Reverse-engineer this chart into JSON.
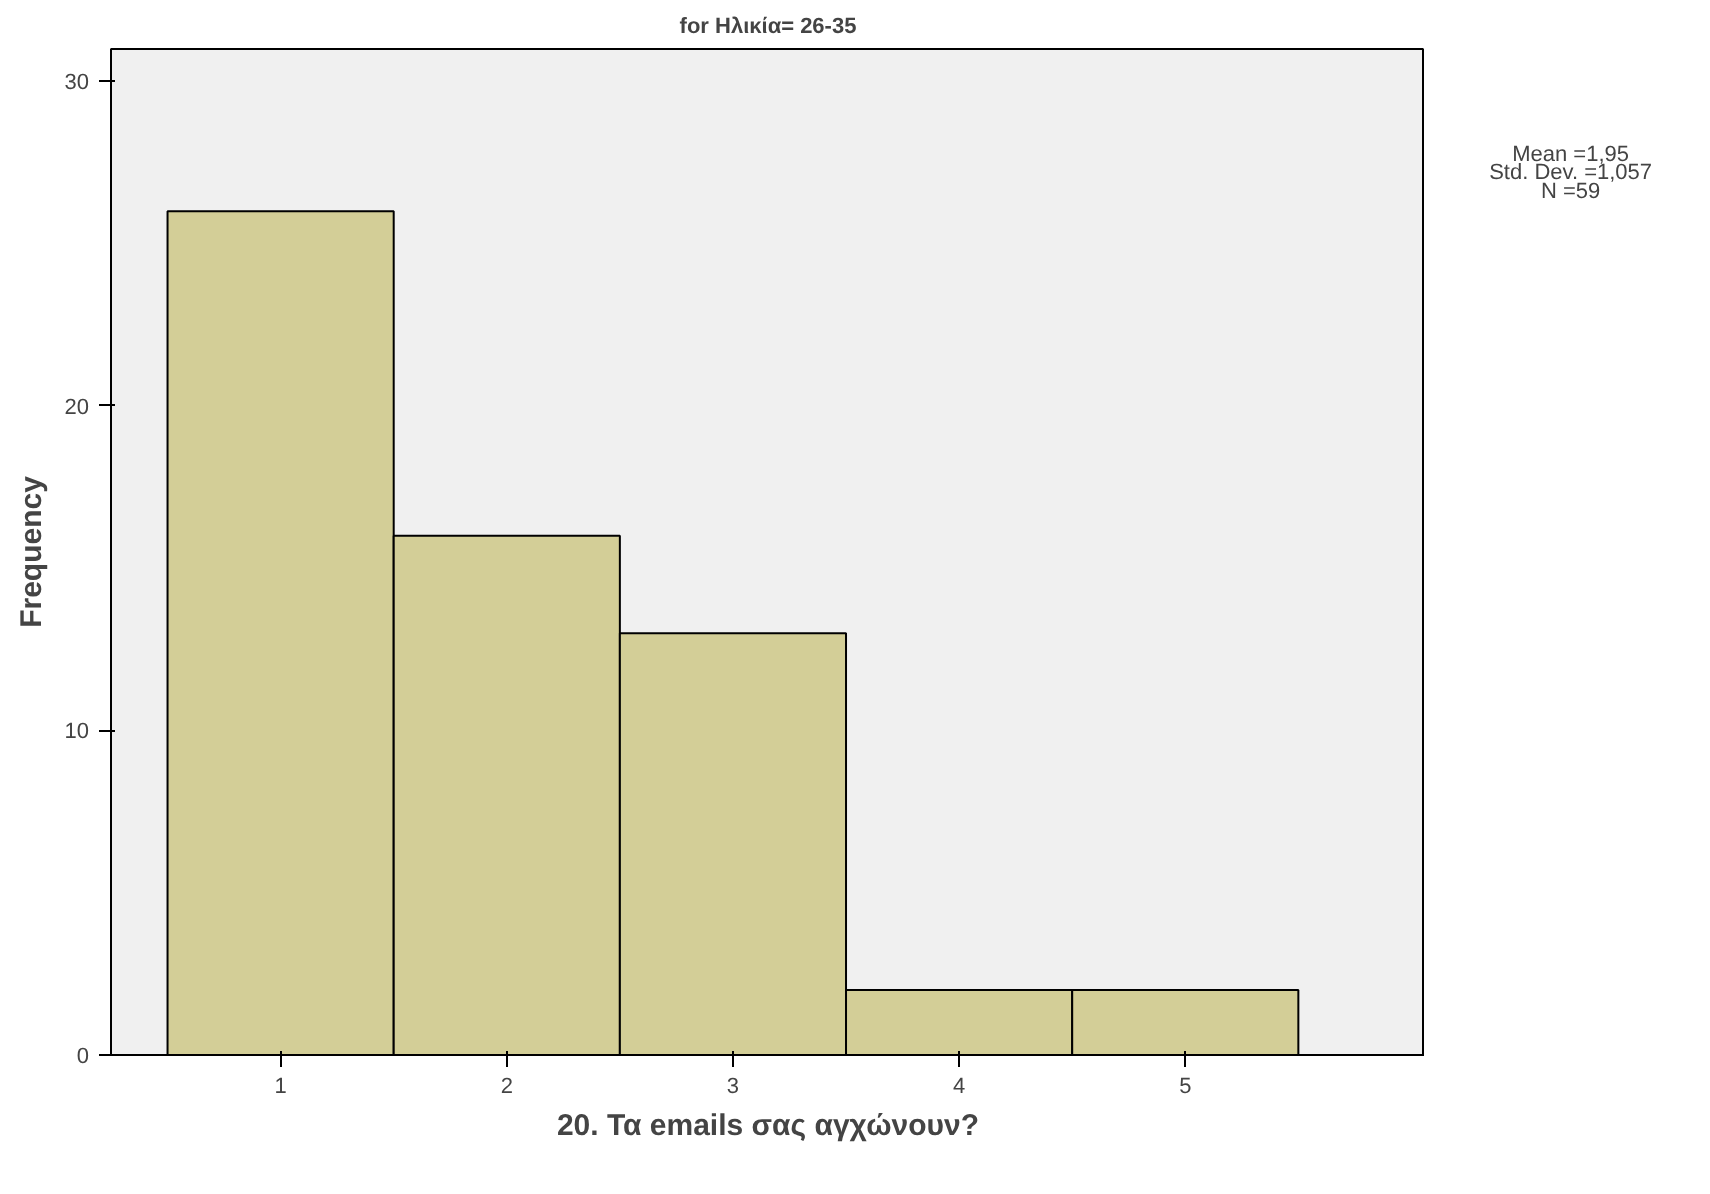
{
  "chart_data": {
    "type": "histogram",
    "title": "for Ηλικία= 26-35",
    "xlabel": "20. Τα emails σας αγχώνουν?",
    "ylabel": "Frequency",
    "bins": [
      0.5,
      1.5,
      2.5,
      3.5,
      4.5,
      5.5
    ],
    "values": [
      26,
      16,
      13,
      2,
      2
    ],
    "color": "#d3ce97",
    "xlim": [
      0.25,
      6.06
    ],
    "xticks": [
      1,
      2,
      3,
      4,
      5
    ],
    "ylim": [
      0,
      31
    ],
    "yticks": [
      0,
      10,
      20,
      30
    ],
    "grid": false,
    "annotations": [
      "Mean =1,95",
      "Std. Dev. =1,057",
      "N =59"
    ]
  }
}
